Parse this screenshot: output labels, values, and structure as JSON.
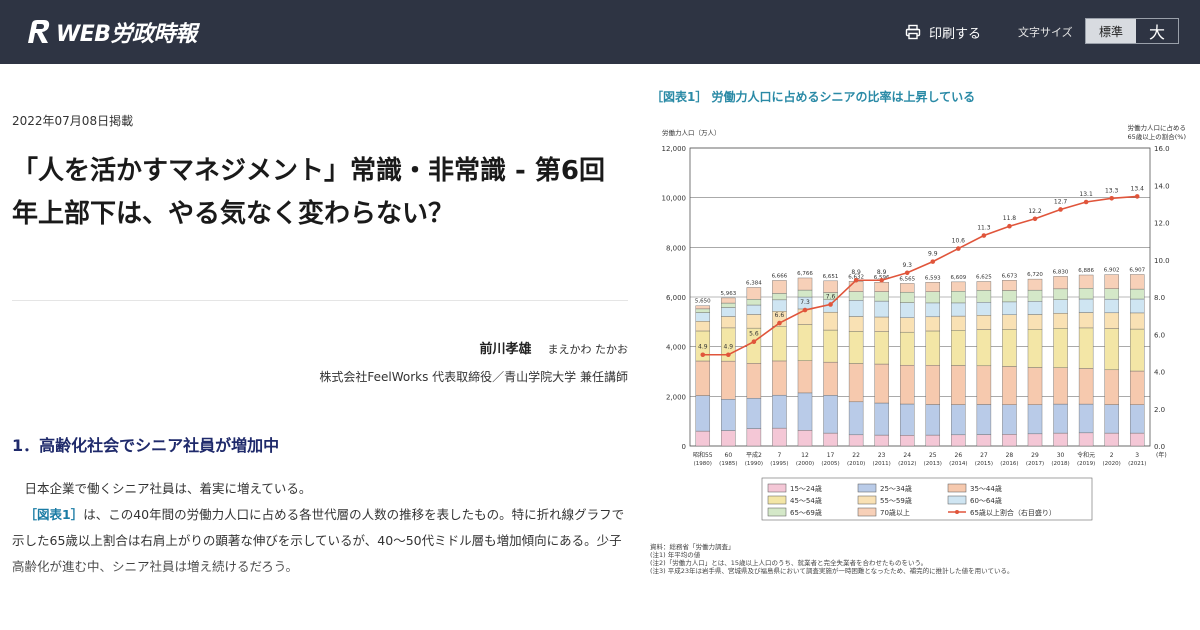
{
  "header": {
    "logo_text": "WEB労政時報",
    "print_label": "印刷する",
    "font_size_label": "文字サイズ",
    "font_size_options": [
      "標準",
      "大"
    ],
    "font_size_selected": "標準"
  },
  "article": {
    "date": "2022年07月08日掲載",
    "title": "「人を活かすマネジメント」常識・非常識 - 第6回　年上部下は、やる気なく変わらない？",
    "author_name": "前川孝雄",
    "author_kana": "まえかわ たかお",
    "author_affiliation": "株式会社FeelWorks 代表取締役／青山学院大学 兼任講師",
    "section_title": "1．高齢化社会でシニア社員が増加中",
    "para1": "日本企業で働くシニア社員は、着実に増えている。",
    "para2_ref": "［図表1］",
    "para2_rest": "は、この40年間の労働力人口に占める各世代層の人数の推移を表したもの。特に折れ線グラフで示した65歳以上割合は右肩上がりの顕著な伸びを示しているが、40〜50代ミドル層も増加傾向にある。少子高齢化が進む中、シニア社員は増え続けるだろう。"
  },
  "figure": {
    "caption": "［図表1］ 労働力人口に占めるシニアの比率は上昇している",
    "notes": [
      "資料：総務省「労働力調査」",
      "(注1) 年平均の値",
      "(注2)「労働力人口」とは、15歳以上人口のうち、就業者と完全失業者を合わせたものをいう。",
      "(注3) 平成23年は岩手県、宮城県及び福島県において調査実施が一時困難となったため、補完的に推計した値を用いている。"
    ]
  },
  "chart_data": {
    "type": "bar",
    "stacked": true,
    "ylabel_left": "労働力人口（万人）",
    "ylabel_right": "労働力人口に占める65歳以上の割合(%)",
    "ylim_left": [
      0,
      12000
    ],
    "ylim_right": [
      0,
      16
    ],
    "yticks_left": [
      "0",
      "2,000",
      "4,000",
      "6,000",
      "8,000",
      "10,000",
      "12,000"
    ],
    "yticks_right": [
      "0.0",
      "2.0",
      "4.0",
      "6.0",
      "8.0",
      "10.0",
      "12.0",
      "14.0",
      "16.0"
    ],
    "year_unit": "(年)",
    "categories": [
      "昭和55",
      "60",
      "平成2",
      "7",
      "12",
      "17",
      "22",
      "23",
      "24",
      "25",
      "26",
      "27",
      "28",
      "29",
      "30",
      "令和元",
      "2",
      "3"
    ],
    "categories_year": [
      "(1980)",
      "(1985)",
      "(1990)",
      "(1995)",
      "(2000)",
      "(2005)",
      "(2010)",
      "(2011)",
      "(2012)",
      "(2013)",
      "(2014)",
      "(2015)",
      "(2016)",
      "(2017)",
      "(2018)",
      "(2019)",
      "(2020)",
      "(2021)"
    ],
    "totals": [
      "5,650",
      "5,963",
      "6,384",
      "6,666",
      "6,766",
      "6,651",
      "6,632",
      "6,596",
      "6,565",
      "6,593",
      "6,609",
      "6,625",
      "6,673",
      "6,720",
      "6,830",
      "6,886",
      "6,902",
      "6,907"
    ],
    "total_values": [
      5650,
      5963,
      6384,
      6666,
      6766,
      6651,
      6632,
      6596,
      6565,
      6593,
      6609,
      6625,
      6673,
      6720,
      6830,
      6886,
      6902,
      6907
    ],
    "series": [
      {
        "name": "15〜24歳",
        "color": "#f4c7d6",
        "values": [
          600,
          620,
          700,
          720,
          630,
          520,
          450,
          440,
          430,
          440,
          450,
          460,
          470,
          490,
          520,
          530,
          520,
          520
        ]
      },
      {
        "name": "25〜34歳",
        "color": "#b9cbe8",
        "values": [
          1430,
          1260,
          1225,
          1327,
          1508,
          1520,
          1329,
          1291,
          1261,
          1230,
          1216,
          1211,
          1193,
          1173,
          1168,
          1158,
          1146,
          1143
        ]
      },
      {
        "name": "35〜44歳",
        "color": "#f6c9ae",
        "values": [
          1393,
          1538,
          1403,
          1378,
          1295,
          1337,
          1542,
          1569,
          1563,
          1582,
          1576,
          1558,
          1540,
          1498,
          1465,
          1437,
          1402,
          1356
        ]
      },
      {
        "name": "45〜54歳",
        "color": "#f3e6a6",
        "values": [
          1209,
          1338,
          1419,
          1400,
          1456,
          1292,
          1295,
          1305,
          1330,
          1380,
          1420,
          1460,
          1495,
          1540,
          1590,
          1630,
          1660,
          1690
        ]
      },
      {
        "name": "55〜59歳",
        "color": "#f9e1b4",
        "values": [
          390,
          460,
          550,
          600,
          630,
          720,
          600,
          590,
          580,
          570,
          570,
          575,
          585,
          595,
          605,
          620,
          635,
          650
        ]
      },
      {
        "name": "60〜64歳",
        "color": "#cfe5f2",
        "values": [
          350,
          360,
          380,
          460,
          480,
          500,
          650,
          640,
          610,
          560,
          530,
          525,
          520,
          530,
          540,
          545,
          550,
          560
        ]
      },
      {
        "name": "65〜69歳",
        "color": "#d4e8c8",
        "values": [
          150,
          180,
          230,
          260,
          280,
          290,
          350,
          380,
          420,
          450,
          470,
          480,
          460,
          450,
          440,
          430,
          420,
          400
        ]
      },
      {
        "name": "70歳以上",
        "color": "#f7d0b8",
        "values": [
          128,
          207,
          477,
          521,
          487,
          472,
          416,
          381,
          351,
          381,
          377,
          356,
          410,
          444,
          502,
          536,
          569,
          588
        ]
      }
    ],
    "line": {
      "name": "65歳以上割合（右目盛り）",
      "color": "#e0553b",
      "values": [
        4.9,
        4.9,
        5.6,
        6.6,
        7.3,
        7.6,
        8.9,
        8.9,
        9.3,
        9.9,
        10.6,
        11.3,
        11.8,
        12.2,
        12.7,
        13.1,
        13.3,
        13.4
      ],
      "labels": [
        "4.9",
        "4.9",
        "5.6",
        "6.6",
        "7.3",
        "7.6",
        "8.9",
        "8.9",
        "9.3",
        "9.9",
        "10.6",
        "11.3",
        "11.8",
        "12.2",
        "12.7",
        "13.1",
        "13.3",
        "13.4"
      ]
    },
    "legend_position": "bottom"
  }
}
